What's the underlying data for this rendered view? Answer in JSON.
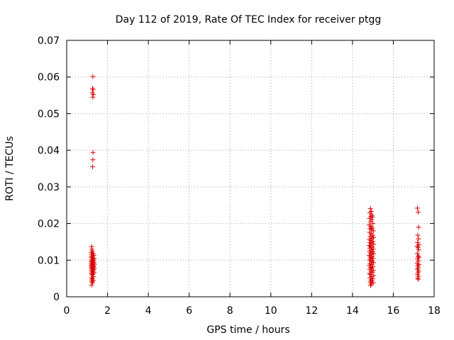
{
  "chart_data": {
    "type": "scatter",
    "title": "Day 112 of 2019, Rate Of TEC Index for receiver ptgg",
    "xlabel": "GPS time / hours",
    "ylabel": "ROTI / TECUs",
    "xlim": [
      0,
      18
    ],
    "ylim": [
      0,
      0.07
    ],
    "xticks": [
      "0",
      "2",
      "4",
      "6",
      "8",
      "10",
      "12",
      "14",
      "16",
      "18"
    ],
    "yticks": [
      "0",
      "0.01",
      "0.02",
      "0.03",
      "0.04",
      "0.05",
      "0.06",
      "0.07"
    ],
    "grid": true,
    "marker": "+",
    "marker_color": "#dd0000",
    "series": [
      {
        "points": [
          [
            1.28,
            0.0601
          ],
          [
            1.27,
            0.0569
          ],
          [
            1.29,
            0.0565
          ],
          [
            1.26,
            0.0557
          ],
          [
            1.3,
            0.0552
          ],
          [
            1.28,
            0.0545
          ],
          [
            1.29,
            0.0394
          ],
          [
            1.28,
            0.0374
          ],
          [
            1.27,
            0.0355
          ],
          [
            1.22,
            0.0137
          ],
          [
            1.24,
            0.013
          ],
          [
            1.26,
            0.0125
          ],
          [
            1.21,
            0.0121
          ],
          [
            1.3,
            0.0118
          ],
          [
            1.23,
            0.0116
          ],
          [
            1.33,
            0.0113
          ],
          [
            1.25,
            0.0111
          ],
          [
            1.2,
            0.0108
          ],
          [
            1.28,
            0.0106
          ],
          [
            1.35,
            0.0104
          ],
          [
            1.22,
            0.0102
          ],
          [
            1.31,
            0.01
          ],
          [
            1.26,
            0.0098
          ],
          [
            1.2,
            0.0097
          ],
          [
            1.34,
            0.0095
          ],
          [
            1.24,
            0.0094
          ],
          [
            1.29,
            0.0092
          ],
          [
            1.21,
            0.009
          ],
          [
            1.36,
            0.0089
          ],
          [
            1.27,
            0.0088
          ],
          [
            1.23,
            0.0086
          ],
          [
            1.32,
            0.0085
          ],
          [
            1.2,
            0.0083
          ],
          [
            1.3,
            0.0082
          ],
          [
            1.25,
            0.008
          ],
          [
            1.35,
            0.0079
          ],
          [
            1.22,
            0.0078
          ],
          [
            1.28,
            0.0076
          ],
          [
            1.33,
            0.0075
          ],
          [
            1.21,
            0.0073
          ],
          [
            1.26,
            0.0072
          ],
          [
            1.3,
            0.007
          ],
          [
            1.24,
            0.0068
          ],
          [
            1.34,
            0.0066
          ],
          [
            1.21,
            0.0064
          ],
          [
            1.29,
            0.0062
          ],
          [
            1.25,
            0.006
          ],
          [
            1.31,
            0.0055
          ],
          [
            1.22,
            0.0052
          ],
          [
            1.27,
            0.0049
          ],
          [
            1.23,
            0.0046
          ],
          [
            1.3,
            0.0044
          ],
          [
            1.24,
            0.0041
          ],
          [
            1.26,
            0.0038
          ],
          [
            1.22,
            0.0032
          ],
          [
            14.88,
            0.0241
          ],
          [
            14.92,
            0.0233
          ],
          [
            14.85,
            0.0229
          ],
          [
            14.96,
            0.0223
          ],
          [
            14.9,
            0.022
          ],
          [
            14.98,
            0.0218
          ],
          [
            14.84,
            0.0214
          ],
          [
            14.94,
            0.021
          ],
          [
            14.88,
            0.0205
          ],
          [
            15.0,
            0.02
          ],
          [
            14.82,
            0.0196
          ],
          [
            14.9,
            0.0192
          ],
          [
            14.97,
            0.0188
          ],
          [
            14.86,
            0.0186
          ],
          [
            14.93,
            0.0184
          ],
          [
            15.02,
            0.018
          ],
          [
            14.84,
            0.0176
          ],
          [
            14.91,
            0.0172
          ],
          [
            14.99,
            0.0168
          ],
          [
            14.87,
            0.0165
          ],
          [
            15.03,
            0.0162
          ],
          [
            14.95,
            0.016
          ],
          [
            14.83,
            0.0157
          ],
          [
            14.9,
            0.0154
          ],
          [
            15.0,
            0.0151
          ],
          [
            14.86,
            0.0148
          ],
          [
            14.94,
            0.0146
          ],
          [
            15.04,
            0.0143
          ],
          [
            14.82,
            0.014
          ],
          [
            14.89,
            0.0138
          ],
          [
            14.97,
            0.0135
          ],
          [
            14.85,
            0.0133
          ],
          [
            15.02,
            0.013
          ],
          [
            14.92,
            0.0128
          ],
          [
            14.84,
            0.0125
          ],
          [
            14.99,
            0.0123
          ],
          [
            14.88,
            0.012
          ],
          [
            15.04,
            0.0118
          ],
          [
            14.93,
            0.0116
          ],
          [
            14.82,
            0.0113
          ],
          [
            14.96,
            0.011
          ],
          [
            14.87,
            0.0108
          ],
          [
            15.01,
            0.0105
          ],
          [
            14.9,
            0.0103
          ],
          [
            14.84,
            0.01
          ],
          [
            14.98,
            0.0098
          ],
          [
            14.92,
            0.0095
          ],
          [
            15.03,
            0.0093
          ],
          [
            14.86,
            0.009
          ],
          [
            14.95,
            0.0088
          ],
          [
            14.83,
            0.0085
          ],
          [
            15.0,
            0.0082
          ],
          [
            14.89,
            0.008
          ],
          [
            14.94,
            0.0078
          ],
          [
            14.85,
            0.0075
          ],
          [
            15.02,
            0.0072
          ],
          [
            14.91,
            0.007
          ],
          [
            14.97,
            0.0067
          ],
          [
            14.84,
            0.0064
          ],
          [
            14.88,
            0.0061
          ],
          [
            15.04,
            0.0058
          ],
          [
            14.93,
            0.0055
          ],
          [
            14.86,
            0.0052
          ],
          [
            14.99,
            0.0049
          ],
          [
            14.9,
            0.0046
          ],
          [
            14.95,
            0.0043
          ],
          [
            14.87,
            0.004
          ],
          [
            15.01,
            0.0038
          ],
          [
            14.92,
            0.0035
          ],
          [
            14.89,
            0.0031
          ],
          [
            17.18,
            0.0242
          ],
          [
            17.22,
            0.0231
          ],
          [
            17.24,
            0.019
          ],
          [
            17.2,
            0.0168
          ],
          [
            17.23,
            0.0158
          ],
          [
            17.19,
            0.0148
          ],
          [
            17.25,
            0.0142
          ],
          [
            17.17,
            0.0138
          ],
          [
            17.21,
            0.0134
          ],
          [
            17.24,
            0.0128
          ],
          [
            17.18,
            0.0118
          ],
          [
            17.22,
            0.0111
          ],
          [
            17.26,
            0.0108
          ],
          [
            17.19,
            0.0104
          ],
          [
            17.23,
            0.0098
          ],
          [
            17.17,
            0.0092
          ],
          [
            17.25,
            0.0088
          ],
          [
            17.2,
            0.0084
          ],
          [
            17.22,
            0.0079
          ],
          [
            17.18,
            0.0075
          ],
          [
            17.24,
            0.007
          ],
          [
            17.21,
            0.0066
          ],
          [
            17.19,
            0.0061
          ],
          [
            17.23,
            0.0056
          ],
          [
            17.2,
            0.0051
          ],
          [
            17.22,
            0.0048
          ]
        ]
      }
    ]
  }
}
